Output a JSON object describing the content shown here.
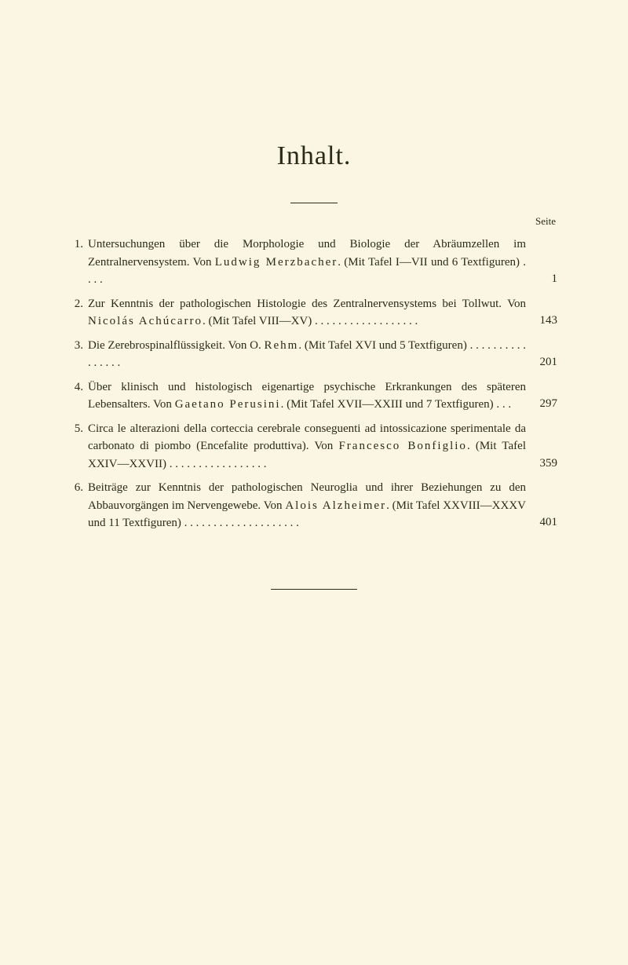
{
  "title": "Inhalt.",
  "page_header": "Seite",
  "entries": [
    {
      "num": "1.",
      "text_html": "Untersuchungen über die Morphologie und Biologie der Abräumzellen im Zentralnervensystem. Von <span class=\"spaced\">Ludwig Merzbacher</span>. (Mit Tafel I—VII und 6 Textfiguren) . . . .",
      "page": "1"
    },
    {
      "num": "2.",
      "text_html": "Zur Kenntnis der pathologischen Histologie des Zentralnervensystems bei Tollwut. Von <span class=\"spaced\">Nicolás Achúcarro</span>. (Mit Tafel VIII—XV) . . . . . . . . . . . . . . . . . .",
      "page": "143"
    },
    {
      "num": "3.",
      "text_html": "Die Zerebrospinalflüssigkeit. Von O. <span class=\"spaced\">Rehm</span>. (Mit Tafel XVI und 5 Textfiguren) . . . . . . . . . . . . . . . .",
      "page": "201"
    },
    {
      "num": "4.",
      "text_html": "Über klinisch und histologisch eigenartige psychische Erkrankungen des späteren Lebensalters. Von <span class=\"spaced\">Gaetano Perusini</span>. (Mit Tafel XVII—XXIII und 7 Textfiguren) . . .",
      "page": "297"
    },
    {
      "num": "5.",
      "text_html": "Circa le alterazioni della corteccia cerebrale conseguenti ad intossicazione sperimentale da carbonato di piombo (Encefalite produttiva). Von <span class=\"spaced\">Francesco Bonfiglio</span>. (Mit Tafel XXIV—XXVII) . . . . . . . . . . . . . . . . .",
      "page": "359"
    },
    {
      "num": "6.",
      "text_html": "Beiträge zur Kenntnis der pathologischen Neuroglia und ihrer Beziehungen zu den Abbauvorgängen im Nervengewebe. Von <span class=\"spaced\">Alois Alzheimer</span>. (Mit Tafel XXVIII—XXXV und 11 Textfiguren) . . . . . . . . . . . . . . . . . . . .",
      "page": "401"
    }
  ]
}
